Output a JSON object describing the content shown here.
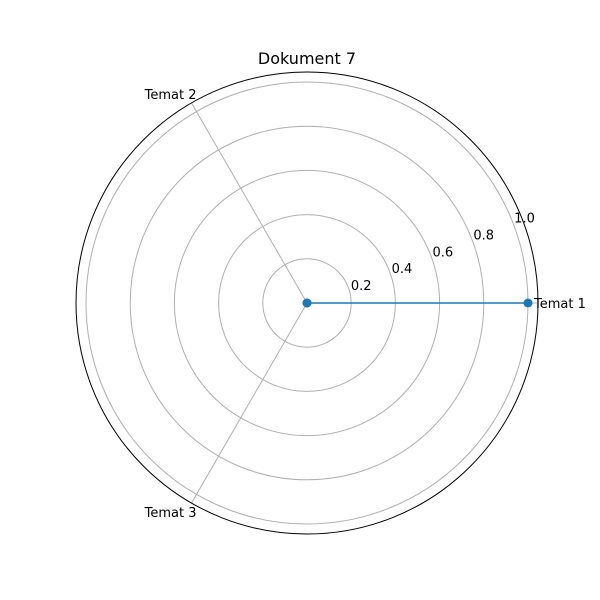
{
  "chart_data": {
    "type": "radar",
    "title": "Dokument 7",
    "categories": [
      "Temat 1",
      "Temat 2",
      "Temat 3"
    ],
    "series": [
      {
        "values": [
          1.0,
          0.0,
          0.0
        ]
      }
    ],
    "rlim": [
      0,
      1.0
    ],
    "rticks": [
      "0.2",
      "0.4",
      "0.6",
      "0.8",
      "1.0"
    ],
    "grid": true,
    "legend": "none",
    "colors": {
      "series": "#1f77b4",
      "grid": "#b0b0b0",
      "outline": "#000000"
    }
  }
}
